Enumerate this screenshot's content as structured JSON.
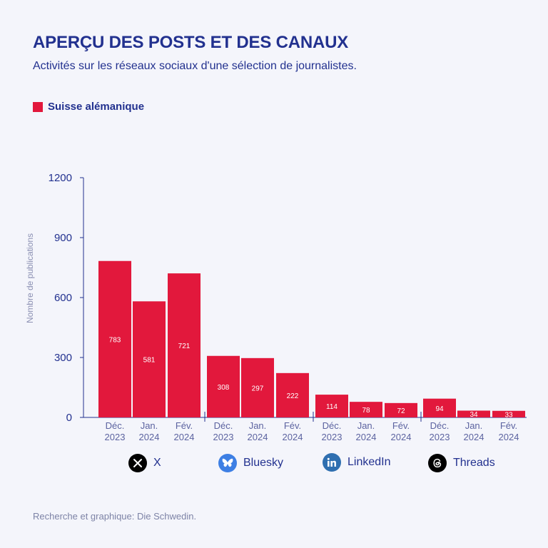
{
  "header": {
    "title": "APERÇU DES POSTS ET DES CANAUX",
    "subtitle": "Activités sur les réseaux sociaux d'une sélection de journalistes."
  },
  "legend": {
    "label": "Suisse alémanique",
    "color": "#e2183c"
  },
  "platforms": [
    {
      "label": "X",
      "icon": "x-logo-icon",
      "color": "#000000"
    },
    {
      "label": "Bluesky",
      "icon": "bluesky-butterfly-icon",
      "color": "#3d7fe4"
    },
    {
      "label": "LinkedIn",
      "icon": "linkedin-logo-icon",
      "color": "#2f6fb0"
    },
    {
      "label": "Threads",
      "icon": "threads-logo-icon",
      "color": "#000000"
    }
  ],
  "footer": {
    "credit": "Recherche et graphique: Die Schwedin."
  },
  "colors": {
    "bar": "#e2183c",
    "text": "#22318f",
    "axis_label": "#8b90b3"
  },
  "chart_data": {
    "type": "bar",
    "ylabel": "Nombre de publications",
    "ylim": [
      0,
      1200
    ],
    "yticks": [
      0,
      300,
      600,
      900,
      1200
    ],
    "groups": [
      "X",
      "Bluesky",
      "LinkedIn",
      "Threads"
    ],
    "categories": [
      [
        "Déc.",
        "2023"
      ],
      [
        "Jan.",
        "2024"
      ],
      [
        "Fév.",
        "2024"
      ],
      [
        "Déc.",
        "2023"
      ],
      [
        "Jan.",
        "2024"
      ],
      [
        "Fév.",
        "2024"
      ],
      [
        "Déc.",
        "2023"
      ],
      [
        "Jan.",
        "2024"
      ],
      [
        "Fév.",
        "2024"
      ],
      [
        "Déc.",
        "2023"
      ],
      [
        "Jan.",
        "2024"
      ],
      [
        "Fév.",
        "2024"
      ]
    ],
    "series": [
      {
        "name": "Suisse alémanique",
        "values": [
          783,
          581,
          721,
          308,
          297,
          222,
          114,
          78,
          72,
          94,
          34,
          33
        ]
      }
    ]
  }
}
